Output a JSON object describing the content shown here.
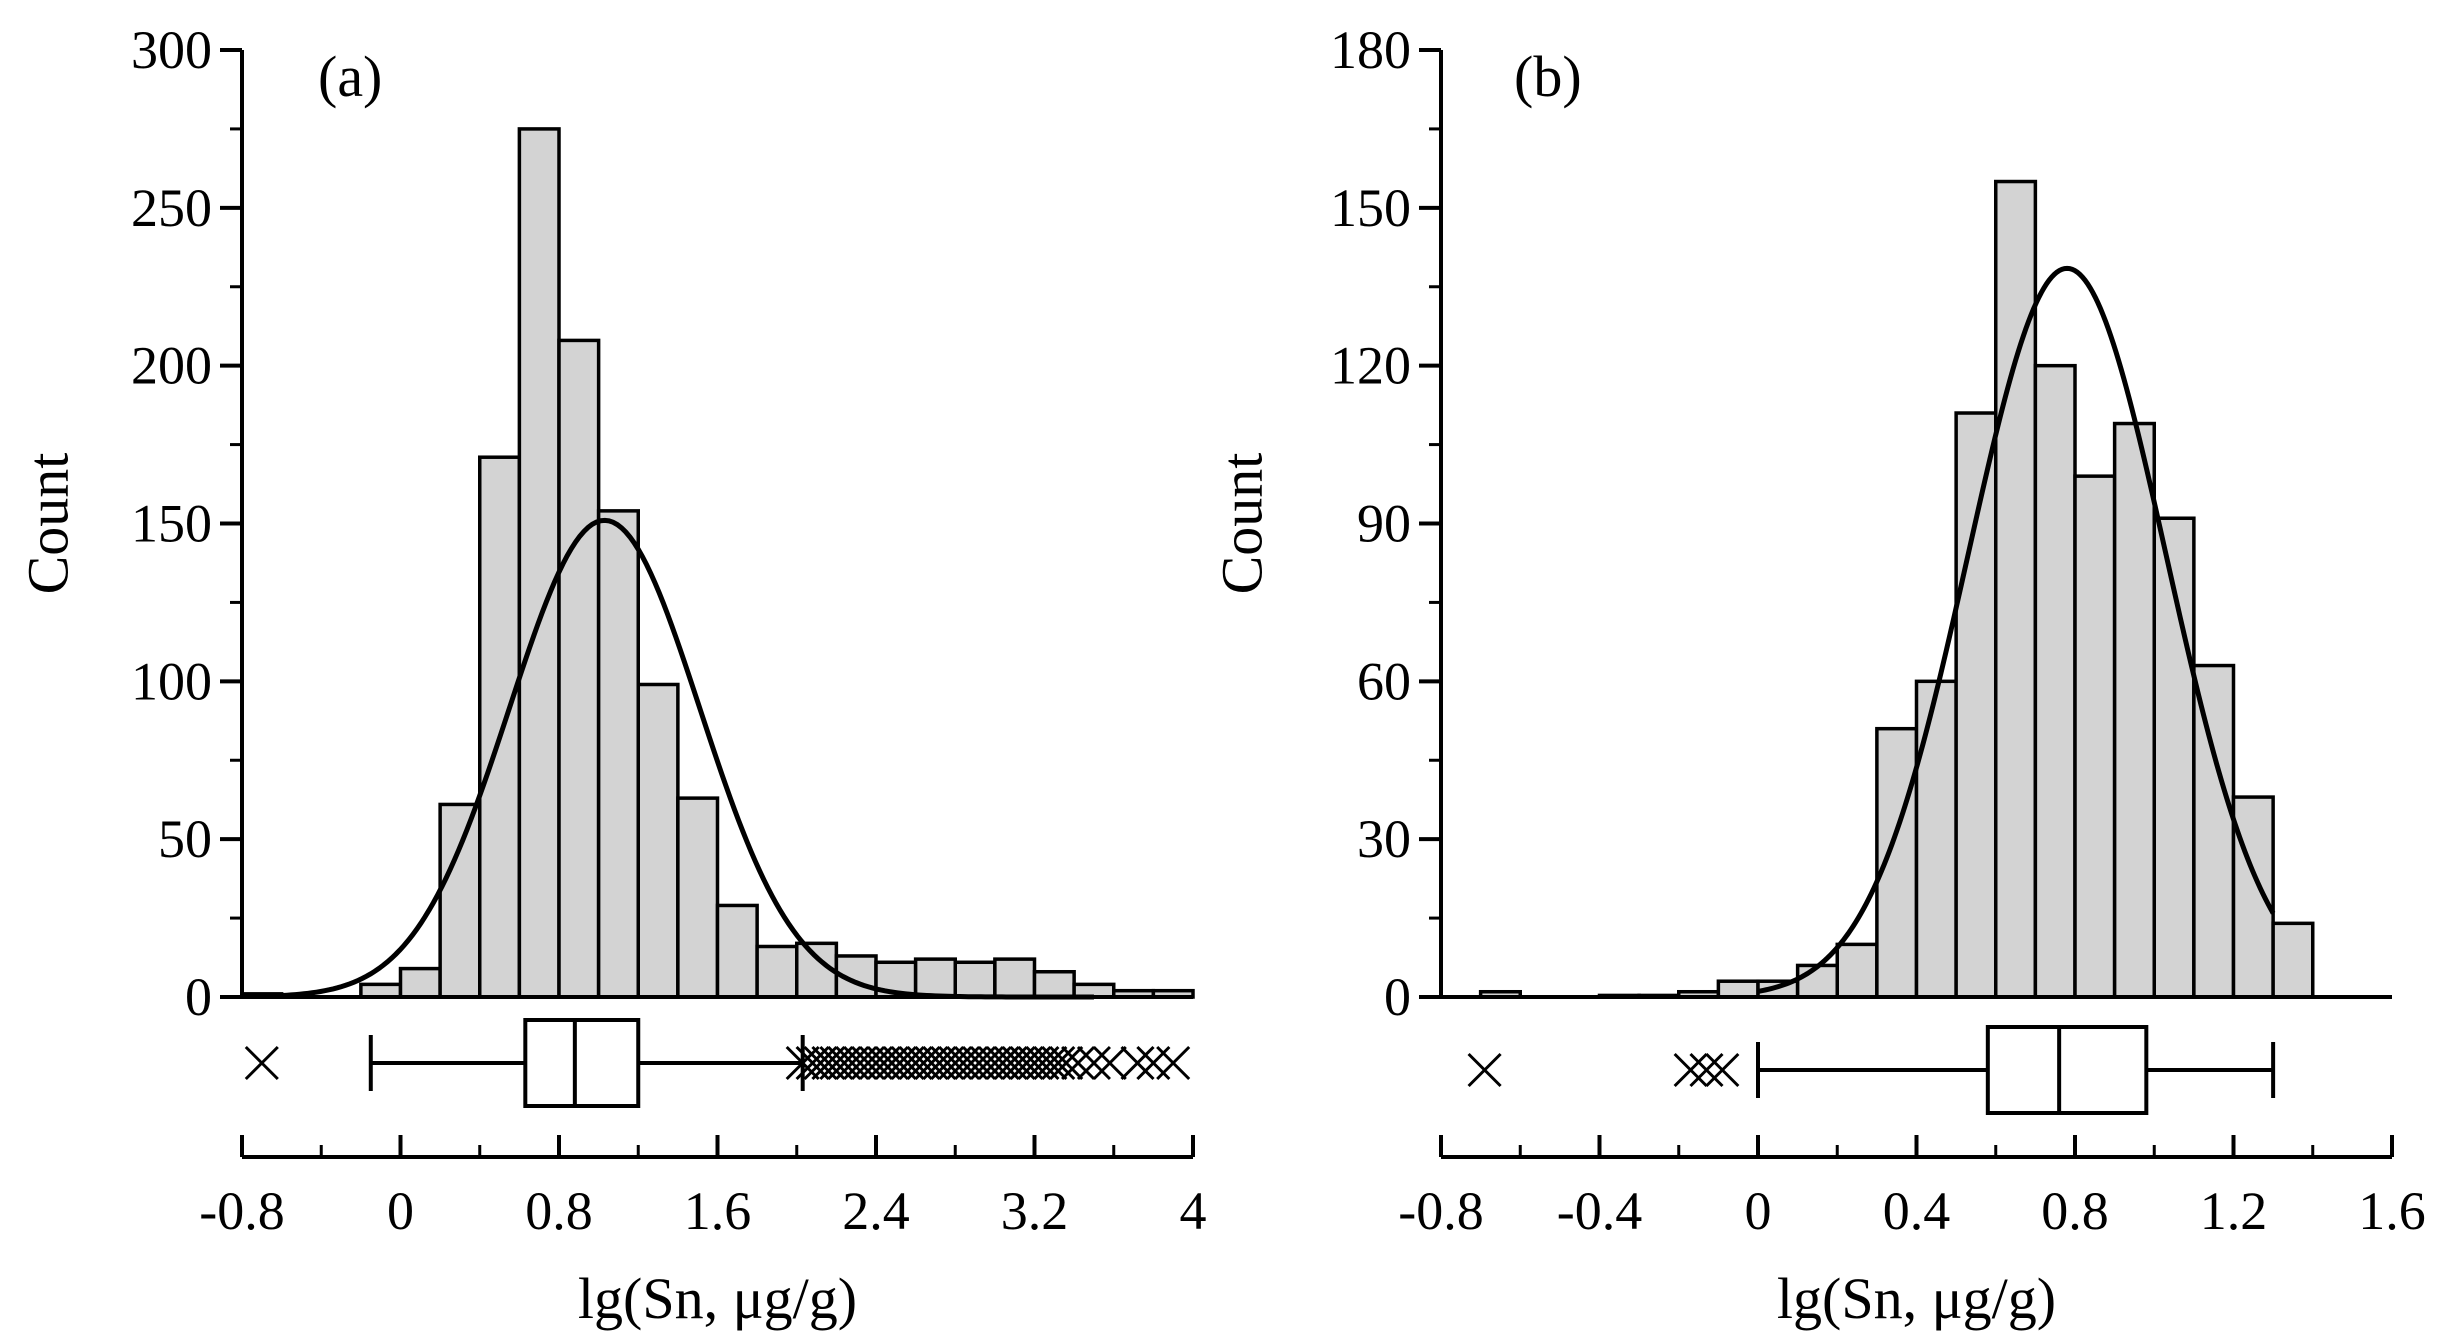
{
  "chart_data": [
    {
      "type": "bar",
      "panel_label": "(a)",
      "xlabel": "lg(Sn, μg/g)",
      "ylabel": "Count",
      "xlim": [
        -0.8,
        4.0
      ],
      "ylim": [
        0,
        300
      ],
      "x_ticks": [
        -0.8,
        0,
        0.8,
        1.6,
        2.4,
        3.2,
        4
      ],
      "x_tick_labels": [
        "-0.8",
        "0",
        "0.8",
        "1.6",
        "2.4",
        "3.2",
        "4"
      ],
      "y_ticks": [
        0,
        50,
        100,
        150,
        200,
        250,
        300
      ],
      "y_tick_labels": [
        "0",
        "50",
        "100",
        "150",
        "200",
        "250",
        "300"
      ],
      "bin_width": 0.2,
      "bins": [
        {
          "x0": -0.8,
          "count": 1
        },
        {
          "x0": -0.2,
          "count": 4
        },
        {
          "x0": 0.0,
          "count": 9
        },
        {
          "x0": 0.2,
          "count": 61
        },
        {
          "x0": 0.4,
          "count": 171
        },
        {
          "x0": 0.6,
          "count": 275
        },
        {
          "x0": 0.8,
          "count": 208
        },
        {
          "x0": 1.0,
          "count": 154
        },
        {
          "x0": 1.2,
          "count": 99
        },
        {
          "x0": 1.4,
          "count": 63
        },
        {
          "x0": 1.6,
          "count": 29
        },
        {
          "x0": 1.8,
          "count": 16
        },
        {
          "x0": 2.0,
          "count": 17
        },
        {
          "x0": 2.2,
          "count": 13
        },
        {
          "x0": 2.4,
          "count": 11
        },
        {
          "x0": 2.6,
          "count": 12
        },
        {
          "x0": 2.8,
          "count": 11
        },
        {
          "x0": 3.0,
          "count": 12
        },
        {
          "x0": 3.2,
          "count": 8
        },
        {
          "x0": 3.4,
          "count": 4
        },
        {
          "x0": 3.6,
          "count": 2
        },
        {
          "x0": 3.8,
          "count": 2
        }
      ],
      "normal_fit": {
        "mean": 1.03,
        "sd": 0.48,
        "peak": 151,
        "x_from": -0.72,
        "x_to": 3.5
      },
      "boxplot": {
        "whisker_low": -0.15,
        "q1": 0.63,
        "median": 0.88,
        "q3": 1.2,
        "whisker_high": 2.03,
        "outliers": [
          -0.7,
          2.03,
          2.08,
          2.12,
          2.16,
          2.2,
          2.24,
          2.28,
          2.32,
          2.36,
          2.4,
          2.44,
          2.48,
          2.52,
          2.56,
          2.6,
          2.64,
          2.68,
          2.72,
          2.76,
          2.8,
          2.84,
          2.88,
          2.92,
          2.96,
          3.0,
          3.04,
          3.08,
          3.12,
          3.16,
          3.2,
          3.24,
          3.28,
          3.32,
          3.36,
          3.42,
          3.5,
          3.58,
          3.72,
          3.8,
          3.9
        ]
      }
    },
    {
      "type": "bar",
      "panel_label": "(b)",
      "xlabel": "lg(Sn, μg/g)",
      "ylabel": "Count",
      "xlim": [
        -0.8,
        1.6
      ],
      "ylim": [
        0,
        180
      ],
      "x_ticks": [
        -0.8,
        -0.4,
        0,
        0.4,
        0.8,
        1.2,
        1.6
      ],
      "x_tick_labels": [
        "-0.8",
        "-0.4",
        "0",
        "0.4",
        "0.8",
        "1.2",
        "1.6"
      ],
      "y_ticks": [
        0,
        30,
        60,
        90,
        120,
        150,
        180
      ],
      "y_tick_labels": [
        "0",
        "30",
        "60",
        "90",
        "120",
        "150",
        "180"
      ],
      "bin_width": 0.1,
      "bins": [
        {
          "x0": -0.7,
          "count": 1
        },
        {
          "x0": -0.4,
          "count": 0.3
        },
        {
          "x0": -0.3,
          "count": 0.3
        },
        {
          "x0": -0.2,
          "count": 1
        },
        {
          "x0": -0.1,
          "count": 3
        },
        {
          "x0": 0.0,
          "count": 3
        },
        {
          "x0": 0.1,
          "count": 6
        },
        {
          "x0": 0.2,
          "count": 10
        },
        {
          "x0": 0.3,
          "count": 51
        },
        {
          "x0": 0.4,
          "count": 60
        },
        {
          "x0": 0.5,
          "count": 111
        },
        {
          "x0": 0.6,
          "count": 155
        },
        {
          "x0": 0.7,
          "count": 120
        },
        {
          "x0": 0.8,
          "count": 99
        },
        {
          "x0": 0.9,
          "count": 109
        },
        {
          "x0": 1.0,
          "count": 91
        },
        {
          "x0": 1.1,
          "count": 63
        },
        {
          "x0": 1.2,
          "count": 38
        },
        {
          "x0": 1.3,
          "count": 14
        }
      ],
      "normal_fit": {
        "mean": 0.78,
        "sd": 0.25,
        "peak": 138.5,
        "x_from": 0.0,
        "x_to": 1.3
      },
      "boxplot": {
        "whisker_low": 0.0,
        "q1": 0.58,
        "median": 0.76,
        "q3": 0.98,
        "whisker_high": 1.3,
        "outliers": [
          -0.69,
          -0.17,
          -0.13,
          -0.09
        ]
      }
    }
  ]
}
